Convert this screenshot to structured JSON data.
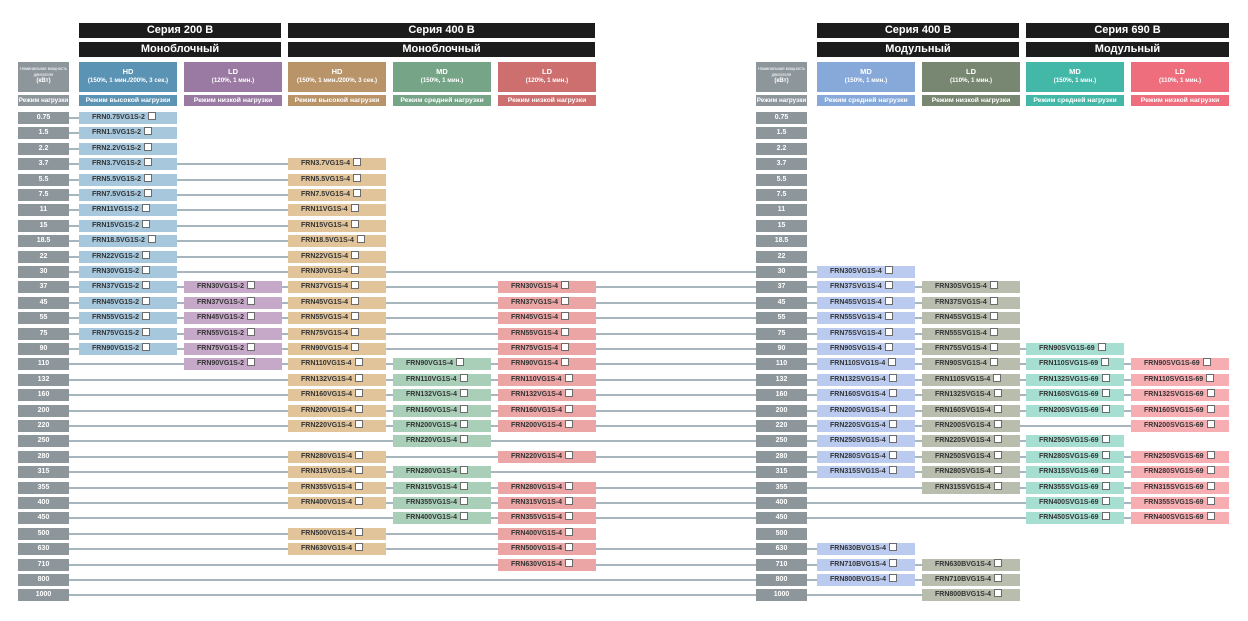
{
  "sections": [
    {
      "series": "Серия 200 В",
      "type": "Моноблочный"
    },
    {
      "series": "Серия 400 В",
      "type": "Моноблочный"
    },
    {
      "series": "Серия 400 В",
      "type": "Модульный"
    },
    {
      "series": "Серия 690 В",
      "type": "Модульный"
    }
  ],
  "kw_header": {
    "line1": "Номинальная мощность",
    "line2": "двигателя",
    "unit": "(кВт)",
    "sub": "Режим нагрузки"
  },
  "modes": {
    "HD": "Режим высокой нагрузки",
    "LD": "Режим низкой нагрузки",
    "MD": "Режим средней нагрузки"
  },
  "columns": [
    {
      "title": "HD",
      "spec": "(150%, 1 мин./200%, 3 сек.)",
      "sub": "Режим высокой нагрузки",
      "color": "#5b93b5",
      "cell_color": "#a6c7dc"
    },
    {
      "title": "LD",
      "spec": "(120%, 1 мин.)",
      "sub": "Режим низкой нагрузки",
      "color": "#9a7aa2",
      "cell_color": "#c6a9c8"
    },
    {
      "title": "HD",
      "spec": "(150%, 1 мин./200%, 3 сек.)",
      "sub": "Режим высокой нагрузки",
      "color": "#b99468",
      "cell_color": "#e1c49a"
    },
    {
      "title": "MD",
      "spec": "(150%, 1 мин.)",
      "sub": "Режим средней нагрузки",
      "color": "#76a486",
      "cell_color": "#a9cfb8"
    },
    {
      "title": "LD",
      "spec": "(120%, 1 мин.)",
      "sub": "Режим низкой нагрузки",
      "color": "#cd6f6f",
      "cell_color": "#eba5a5"
    },
    {
      "title": "MD",
      "spec": "(150%, 1 мин.)",
      "sub": "Режим средней нагрузки",
      "color": "#86a9d9",
      "cell_color": "#bacbef"
    },
    {
      "title": "LD",
      "spec": "(110%, 1 мин.)",
      "sub": "Режим низкой нагрузки",
      "color": "#788771",
      "cell_color": "#b8bdae"
    },
    {
      "title": "MD",
      "spec": "(150%, 1 мин.)",
      "sub": "Режим средней нагрузки",
      "color": "#43b8a8",
      "cell_color": "#a6dfd2"
    },
    {
      "title": "LD",
      "spec": "(110%, 1 мин.)",
      "sub": "Режим низкой нагрузки",
      "color": "#ee6e7e",
      "cell_color": "#f7aeb3"
    }
  ],
  "rows": [
    {
      "kw": "0.75",
      "cells": [
        "FRN0.75VG1S-2",
        null,
        null,
        null,
        null,
        null,
        null,
        null,
        null
      ]
    },
    {
      "kw": "1.5",
      "cells": [
        "FRN1.5VG1S-2",
        null,
        null,
        null,
        null,
        null,
        null,
        null,
        null
      ]
    },
    {
      "kw": "2.2",
      "cells": [
        "FRN2.2VG1S-2",
        null,
        null,
        null,
        null,
        null,
        null,
        null,
        null
      ]
    },
    {
      "kw": "3.7",
      "cells": [
        "FRN3.7VG1S-2",
        null,
        "FRN3.7VG1S-4",
        null,
        null,
        null,
        null,
        null,
        null
      ]
    },
    {
      "kw": "5.5",
      "cells": [
        "FRN5.5VG1S-2",
        null,
        "FRN5.5VG1S-4",
        null,
        null,
        null,
        null,
        null,
        null
      ]
    },
    {
      "kw": "7.5",
      "cells": [
        "FRN7.5VG1S-2",
        null,
        "FRN7.5VG1S-4",
        null,
        null,
        null,
        null,
        null,
        null
      ]
    },
    {
      "kw": "11",
      "cells": [
        "FRN11VG1S-2",
        null,
        "FRN11VG1S-4",
        null,
        null,
        null,
        null,
        null,
        null
      ]
    },
    {
      "kw": "15",
      "cells": [
        "FRN15VG1S-2",
        null,
        "FRN15VG1S-4",
        null,
        null,
        null,
        null,
        null,
        null
      ]
    },
    {
      "kw": "18.5",
      "cells": [
        "FRN18.5VG1S-2",
        null,
        "FRN18.5VG1S-4",
        null,
        null,
        null,
        null,
        null,
        null
      ]
    },
    {
      "kw": "22",
      "cells": [
        "FRN22VG1S-2",
        null,
        "FRN22VG1S-4",
        null,
        null,
        null,
        null,
        null,
        null
      ]
    },
    {
      "kw": "30",
      "cells": [
        "FRN30VG1S-2",
        null,
        "FRN30VG1S-4",
        null,
        null,
        "FRN30SVG1S-4",
        null,
        null,
        null
      ]
    },
    {
      "kw": "37",
      "cells": [
        "FRN37VG1S-2",
        "FRN30VG1S-2",
        "FRN37VG1S-4",
        null,
        "FRN30VG1S-4",
        "FRN37SVG1S-4",
        "FRN30SVG1S-4",
        null,
        null
      ]
    },
    {
      "kw": "45",
      "cells": [
        "FRN45VG1S-2",
        "FRN37VG1S-2",
        "FRN45VG1S-4",
        null,
        "FRN37VG1S-4",
        "FRN45SVG1S-4",
        "FRN37SVG1S-4",
        null,
        null
      ]
    },
    {
      "kw": "55",
      "cells": [
        "FRN55VG1S-2",
        "FRN45VG1S-2",
        "FRN55VG1S-4",
        null,
        "FRN45VG1S-4",
        "FRN55SVG1S-4",
        "FRN45SVG1S-4",
        null,
        null
      ]
    },
    {
      "kw": "75",
      "cells": [
        "FRN75VG1S-2",
        "FRN55VG1S-2",
        "FRN75VG1S-4",
        null,
        "FRN55VG1S-4",
        "FRN75SVG1S-4",
        "FRN55SVG1S-4",
        null,
        null
      ]
    },
    {
      "kw": "90",
      "cells": [
        "FRN90VG1S-2",
        "FRN75VG1S-2",
        "FRN90VG1S-4",
        null,
        "FRN75VG1S-4",
        "FRN90SVG1S-4",
        "FRN75SVG1S-4",
        "FRN90SVG1S-69",
        null
      ]
    },
    {
      "kw": "110",
      "cells": [
        null,
        "FRN90VG1S-2",
        "FRN110VG1S-4",
        "FRN90VG1S-4",
        "FRN90VG1S-4",
        "FRN110SVG1S-4",
        "FRN90SVG1S-4",
        "FRN110SVG1S-69",
        "FRN90SVG1S-69"
      ]
    },
    {
      "kw": "132",
      "cells": [
        null,
        null,
        "FRN132VG1S-4",
        "FRN110VG1S-4",
        "FRN110VG1S-4",
        "FRN132SVG1S-4",
        "FRN110SVG1S-4",
        "FRN132SVG1S-69",
        "FRN110SVG1S-69"
      ]
    },
    {
      "kw": "160",
      "cells": [
        null,
        null,
        "FRN160VG1S-4",
        "FRN132VG1S-4",
        "FRN132VG1S-4",
        "FRN160SVG1S-4",
        "FRN132SVG1S-4",
        "FRN160SVG1S-69",
        "FRN132SVG1S-69"
      ]
    },
    {
      "kw": "200",
      "cells": [
        null,
        null,
        "FRN200VG1S-4",
        "FRN160VG1S-4",
        "FRN160VG1S-4",
        "FRN200SVG1S-4",
        "FRN160SVG1S-4",
        "FRN200SVG1S-69",
        "FRN160SVG1S-69"
      ]
    },
    {
      "kw": "220",
      "cells": [
        null,
        null,
        "FRN220VG1S-4",
        "FRN200VG1S-4",
        "FRN200VG1S-4",
        "FRN220SVG1S-4",
        "FRN200SVG1S-4",
        null,
        "FRN200SVG1S-69"
      ]
    },
    {
      "kw": "250",
      "cells": [
        null,
        null,
        null,
        "FRN220VG1S-4",
        null,
        "FRN250SVG1S-4",
        "FRN220SVG1S-4",
        "FRN250SVG1S-69",
        null
      ]
    },
    {
      "kw": "280",
      "cells": [
        null,
        null,
        "FRN280VG1S-4",
        null,
        "FRN220VG1S-4",
        "FRN280SVG1S-4",
        "FRN250SVG1S-4",
        "FRN280SVG1S-69",
        "FRN250SVG1S-69"
      ]
    },
    {
      "kw": "315",
      "cells": [
        null,
        null,
        "FRN315VG1S-4",
        "FRN280VG1S-4",
        null,
        "FRN315SVG1S-4",
        "FRN280SVG1S-4",
        "FRN315SVG1S-69",
        "FRN280SVG1S-69"
      ]
    },
    {
      "kw": "355",
      "cells": [
        null,
        null,
        "FRN355VG1S-4",
        "FRN315VG1S-4",
        "FRN280VG1S-4",
        null,
        "FRN315SVG1S-4",
        "FRN355SVG1S-69",
        "FRN315SVG1S-69"
      ]
    },
    {
      "kw": "400",
      "cells": [
        null,
        null,
        "FRN400VG1S-4",
        "FRN355VG1S-4",
        "FRN315VG1S-4",
        null,
        null,
        "FRN400SVG1S-69",
        "FRN355SVG1S-69"
      ]
    },
    {
      "kw": "450",
      "cells": [
        null,
        null,
        null,
        "FRN400VG1S-4",
        "FRN355VG1S-4",
        null,
        null,
        "FRN450SVG1S-69",
        "FRN400SVG1S-69"
      ]
    },
    {
      "kw": "500",
      "cells": [
        null,
        null,
        "FRN500VG1S-4",
        null,
        "FRN400VG1S-4",
        null,
        null,
        null,
        null
      ]
    },
    {
      "kw": "630",
      "cells": [
        null,
        null,
        "FRN630VG1S-4",
        null,
        "FRN500VG1S-4",
        "FRN630BVG1S-4",
        null,
        null,
        null
      ]
    },
    {
      "kw": "710",
      "cells": [
        null,
        null,
        null,
        null,
        "FRN630VG1S-4",
        "FRN710BVG1S-4",
        "FRN630BVG1S-4",
        null,
        null
      ]
    },
    {
      "kw": "800",
      "cells": [
        null,
        null,
        null,
        null,
        null,
        "FRN800BVG1S-4",
        "FRN710BVG1S-4",
        null,
        null
      ]
    },
    {
      "kw": "1000",
      "cells": [
        null,
        null,
        null,
        null,
        null,
        null,
        "FRN800BVG1S-4",
        null,
        null
      ]
    }
  ]
}
